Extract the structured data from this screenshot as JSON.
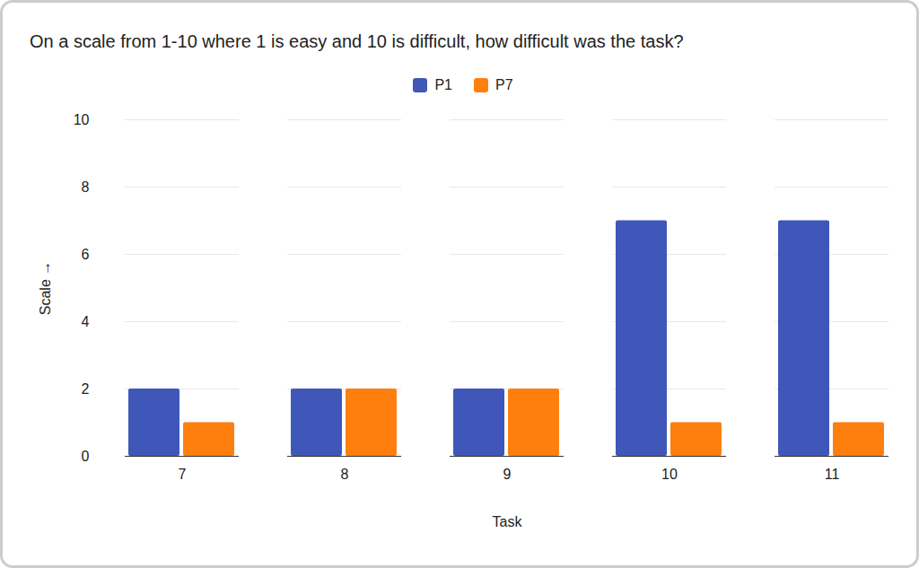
{
  "chart_data": {
    "type": "bar",
    "title": "On a scale from 1-10 where 1 is easy and 10 is difficult, how difficult was the task?",
    "xlabel": "Task",
    "ylabel": "Scale",
    "categories": [
      "7",
      "8",
      "9",
      "10",
      "11"
    ],
    "series": [
      {
        "name": "P1",
        "color": "#3f57b8",
        "values": [
          2,
          2,
          2,
          7,
          7
        ]
      },
      {
        "name": "P7",
        "color": "#ff7f0e",
        "values": [
          1,
          2,
          2,
          1,
          1
        ]
      }
    ],
    "ylim": [
      0,
      10
    ],
    "yticks": [
      0,
      2,
      4,
      6,
      8,
      10
    ],
    "grid": true,
    "legend": "top"
  }
}
